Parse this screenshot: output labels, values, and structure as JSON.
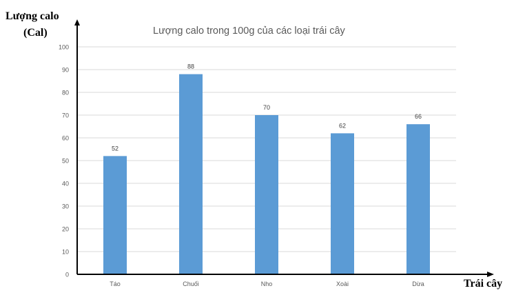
{
  "chart_data": {
    "type": "bar",
    "title": "Lượng calo trong 100g của các loại trái cây",
    "ylabel_line1": "Lượng calo",
    "ylabel_line2": "(Cal)",
    "xlabel": "Trái cây",
    "categories": [
      "Táo",
      "Chuối",
      "Nho",
      "Xoài",
      "Dừa"
    ],
    "values": [
      52,
      88,
      70,
      62,
      66
    ],
    "ylim": [
      0,
      100
    ],
    "yticks": [
      0,
      10,
      20,
      30,
      40,
      50,
      60,
      70,
      80,
      90,
      100
    ],
    "grid": true,
    "bar_color": "#5b9bd5",
    "gridline_color": "#d9d9d9",
    "text_color": "#595959"
  }
}
